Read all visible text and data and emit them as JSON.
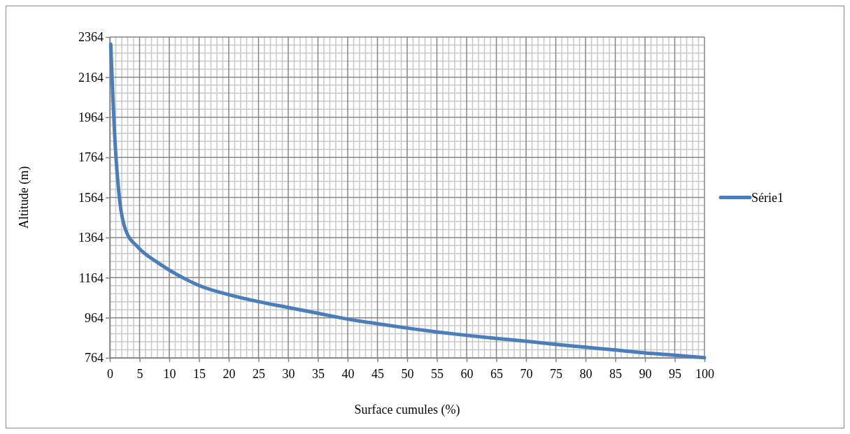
{
  "chart_data": {
    "type": "line",
    "xlabel": "Surface cumules (%)",
    "ylabel": "Altitude (m)",
    "xlim": [
      0,
      100
    ],
    "xticks": [
      0,
      5,
      10,
      15,
      20,
      25,
      30,
      35,
      40,
      45,
      50,
      55,
      60,
      65,
      70,
      75,
      80,
      85,
      90,
      95,
      100
    ],
    "ylim": [
      764,
      2364
    ],
    "yticks": [
      764,
      964,
      1164,
      1364,
      1564,
      1764,
      1964,
      2164,
      2364
    ],
    "grid": true,
    "legend": "right",
    "marker": "none",
    "line_style": "solid",
    "series": [
      {
        "name": "Série1",
        "color": "#4a7ebb",
        "x": [
          0.15,
          0.9,
          1.7,
          2.7,
          4.7,
          8.2,
          12.5,
          15,
          20,
          25,
          30,
          35,
          40,
          45,
          50.6,
          55,
          60,
          65,
          70,
          75,
          80,
          85,
          90,
          95,
          100
        ],
        "values": [
          2328,
          1828,
          1538,
          1398,
          1317,
          1236,
          1160,
          1125,
          1079,
          1044,
          1015,
          986,
          957,
          934,
          910,
          893,
          876,
          861,
          847,
          831,
          817,
          803,
          788,
          777,
          765
        ]
      }
    ]
  }
}
